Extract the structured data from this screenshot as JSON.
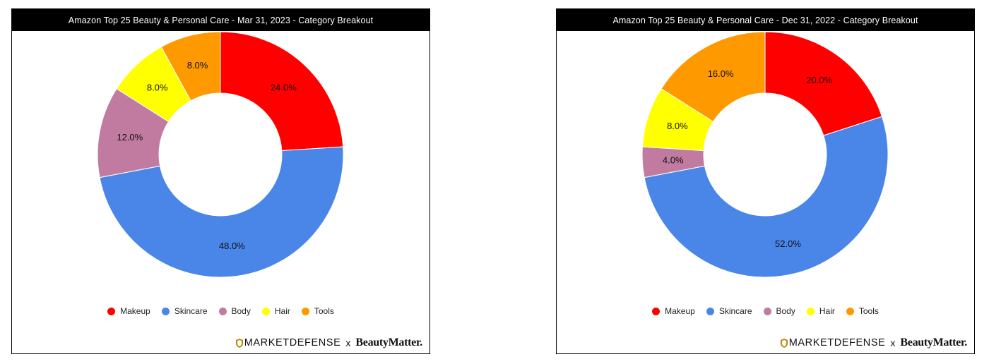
{
  "colors": {
    "Makeup": "#ff0000",
    "Skincare": "#4a86e8",
    "Body": "#c27ba0",
    "Hair": "#ffff00",
    "Tools": "#ff9900"
  },
  "footer": {
    "brand1": "MARKETDEFENSE",
    "separator": "x",
    "brand2": "BeautyMatter."
  },
  "chart_data": [
    {
      "type": "pie",
      "donut": true,
      "title": "Amazon Top 25 Beauty & Personal Care - Mar 31, 2023 - Category Breakout",
      "categories": [
        "Makeup",
        "Skincare",
        "Body",
        "Hair",
        "Tools"
      ],
      "values": [
        24.0,
        48.0,
        12.0,
        8.0,
        8.0
      ],
      "labels": [
        "24.0%",
        "48.0%",
        "12.0%",
        "8.0%",
        "8.0%"
      ],
      "legend": "bottom"
    },
    {
      "type": "pie",
      "donut": true,
      "title": "Amazon Top 25 Beauty & Personal Care - Dec 31, 2022 - Category Breakout",
      "categories": [
        "Makeup",
        "Skincare",
        "Body",
        "Hair",
        "Tools"
      ],
      "values": [
        20.0,
        52.0,
        4.0,
        8.0,
        16.0
      ],
      "labels": [
        "20.0%",
        "52.0%",
        "4.0%",
        "8.0%",
        "16.0%"
      ],
      "legend": "bottom"
    }
  ]
}
